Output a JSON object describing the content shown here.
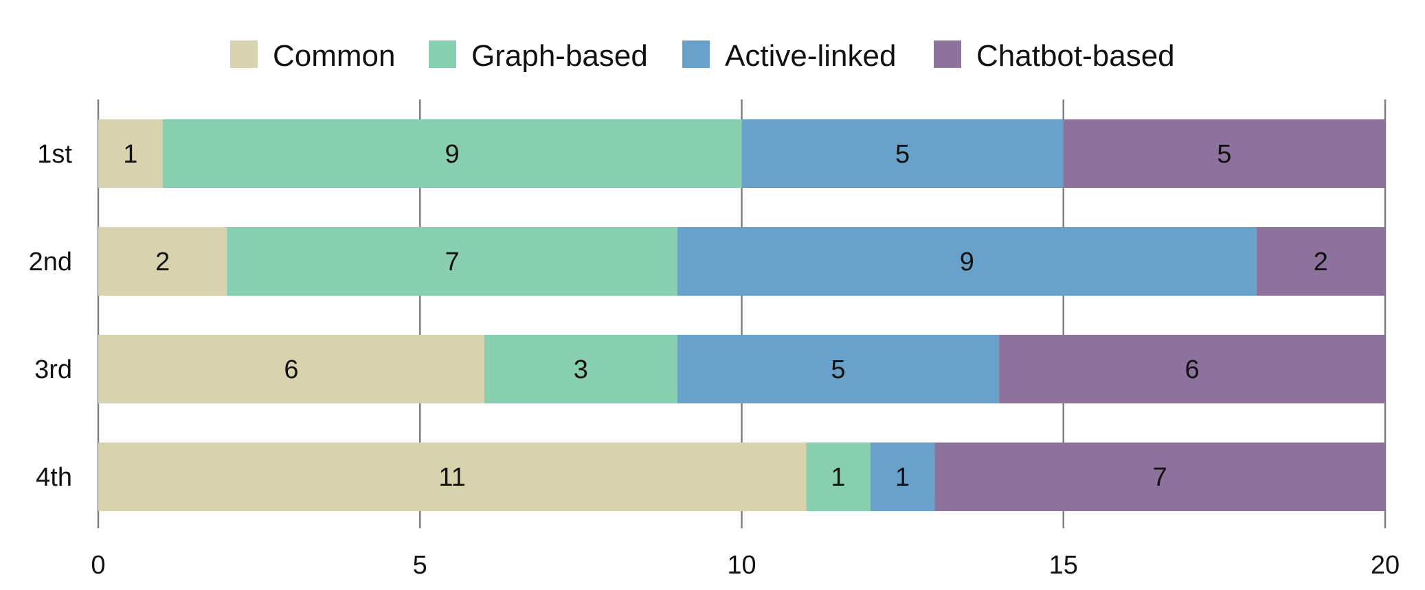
{
  "chart_data": {
    "type": "bar",
    "orientation": "horizontal",
    "stacked": true,
    "categories": [
      "1st",
      "2nd",
      "3rd",
      "4th"
    ],
    "series": [
      {
        "name": "Common",
        "color": "#D9D2AE",
        "values": [
          1,
          2,
          6,
          11
        ]
      },
      {
        "name": "Graph-based",
        "color": "#88CFAF",
        "values": [
          9,
          7,
          3,
          1
        ]
      },
      {
        "name": "Active-linked",
        "color": "#68A1C9",
        "values": [
          5,
          9,
          5,
          1
        ]
      },
      {
        "name": "Chatbot-based",
        "color": "#8C729D",
        "values": [
          5,
          2,
          6,
          7
        ]
      }
    ],
    "xlim": [
      0,
      20
    ],
    "xticks": [
      0,
      5,
      10,
      15,
      20
    ],
    "title": "",
    "xlabel": "",
    "ylabel": "",
    "grid": "vertical",
    "legend": "top-center",
    "data_labels": true
  }
}
